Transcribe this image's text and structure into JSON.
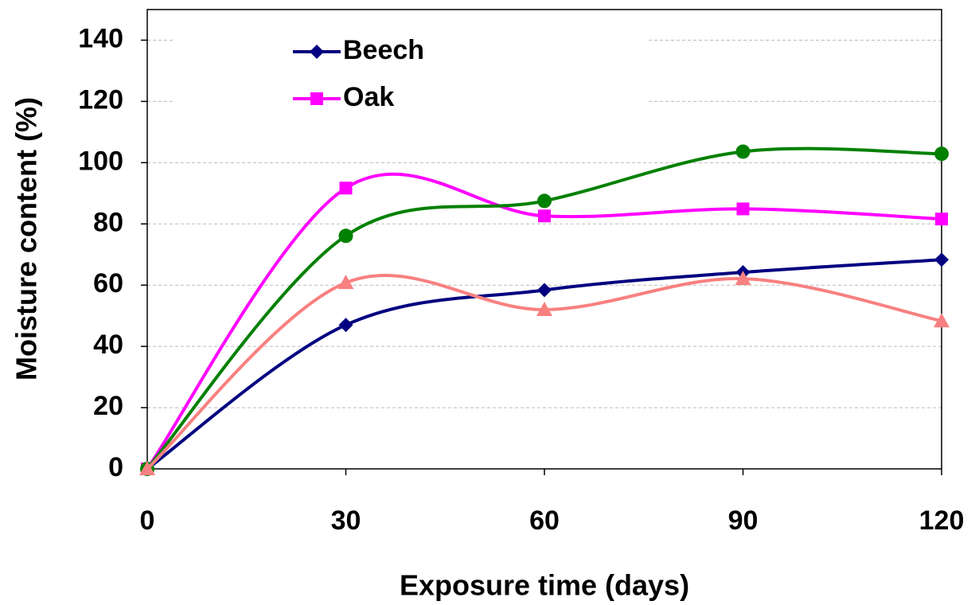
{
  "chart_data": {
    "type": "line",
    "x_label": "Exposure time (days)",
    "y_label": "Moisture content (%)",
    "x": [
      0,
      30,
      60,
      90,
      120
    ],
    "xlim": [
      0,
      120
    ],
    "xticks": [
      0,
      30,
      60,
      90,
      120
    ],
    "ylim": [
      0,
      150
    ],
    "yticks": [
      0,
      20,
      40,
      60,
      80,
      100,
      120,
      140
    ],
    "grid": true,
    "smooth": true,
    "legend": "top-left",
    "series": [
      {
        "name": "Beech",
        "color": "#000080",
        "marker": "diamond",
        "values": [
          0,
          47,
          58.4,
          64.2,
          68.3
        ]
      },
      {
        "name": "Oak",
        "color": "#ff00ff",
        "marker": "square",
        "values": [
          0,
          91.7,
          82.6,
          84.9,
          81.6
        ]
      },
      {
        "color": "#008000",
        "marker": "circle",
        "values": [
          0,
          76.1,
          87.5,
          103.6,
          102.9
        ]
      },
      {
        "color": "#f88080",
        "marker": "triangle",
        "values": [
          0,
          60.8,
          52,
          62.1,
          48.3
        ]
      }
    ]
  }
}
